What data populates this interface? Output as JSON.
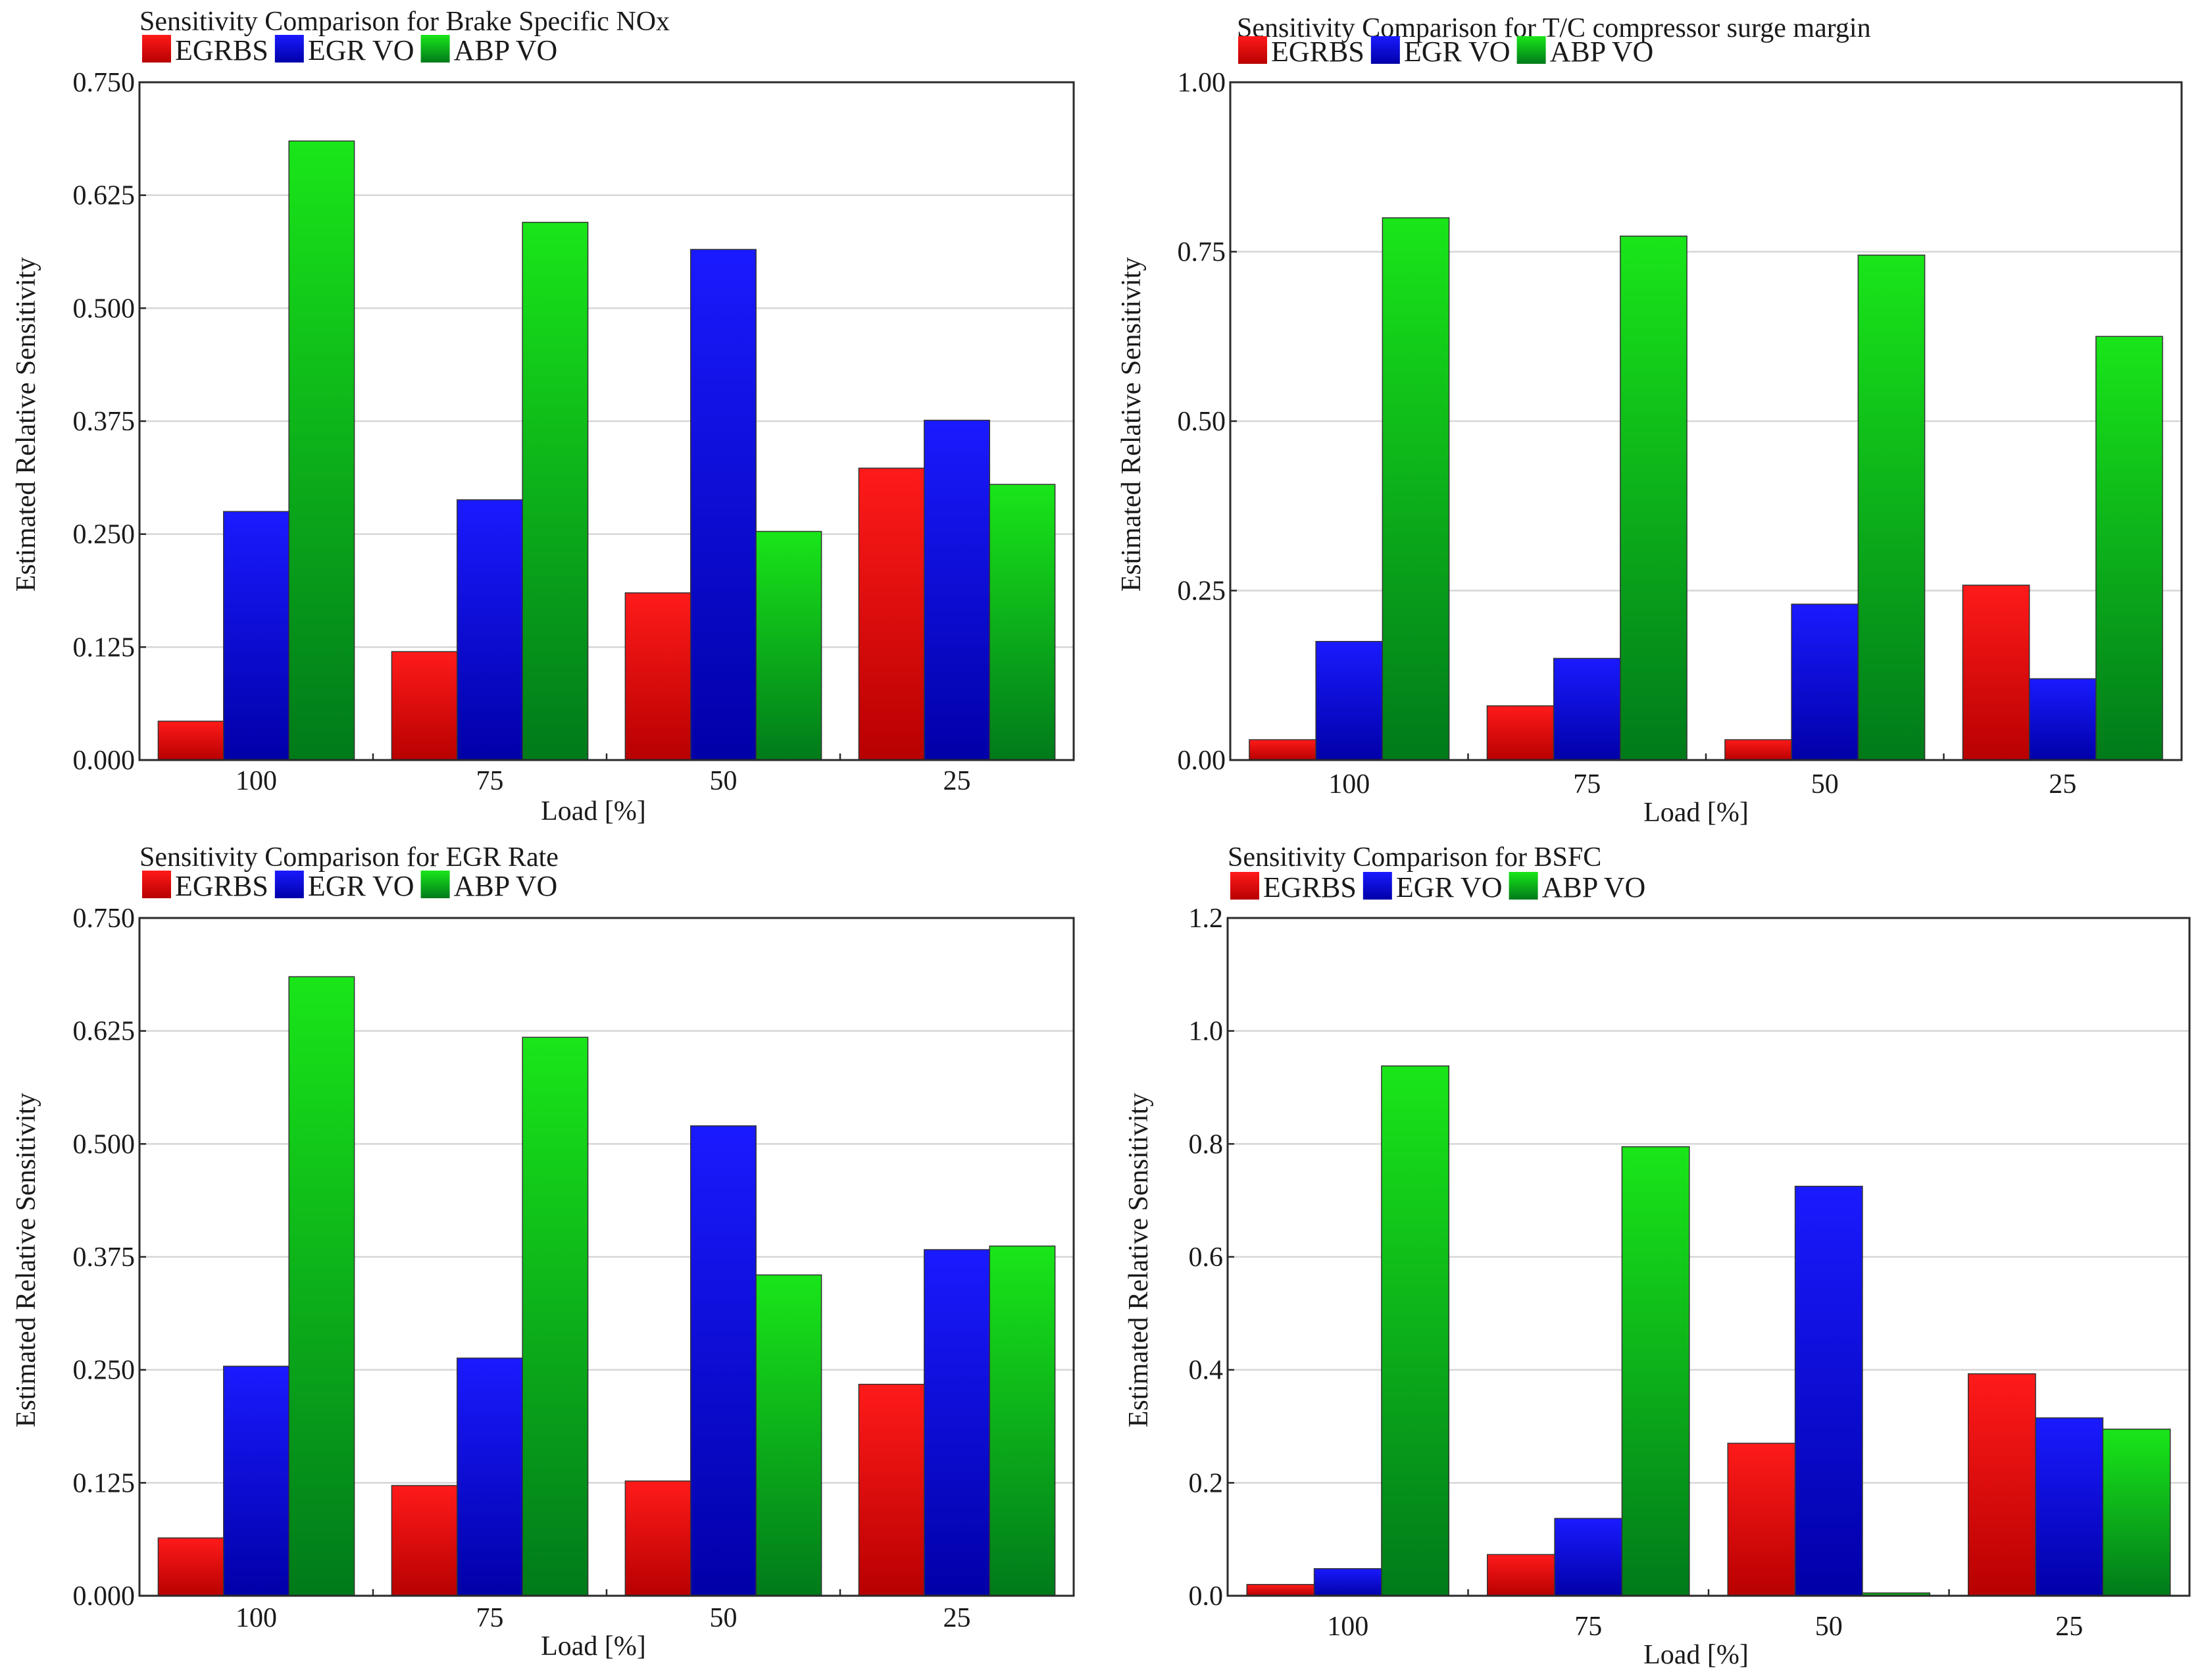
{
  "series_colors": {
    "EGRBS": [
      "#ff1a1a",
      "#b80000"
    ],
    "EGR VO": [
      "#1a1aff",
      "#0000a8"
    ],
    "ABP VO": [
      "#19e619",
      "#007a1a"
    ]
  },
  "chart_data": [
    {
      "type": "bar",
      "title": "Sensitivity Comparison for Brake Specific NOx",
      "legend": [
        "EGRBS",
        "EGR  VO",
        "ABP VO"
      ],
      "categories": [
        "100",
        "75",
        "50",
        "25"
      ],
      "xlabel": "Load [%]",
      "ylabel": "Estimated Relative Sensitivity",
      "ylim": [
        0,
        0.75
      ],
      "yticks": [
        "0.000",
        "0.125",
        "0.250",
        "0.375",
        "0.500",
        "0.625",
        "0.750"
      ],
      "series": [
        {
          "name": "EGRBS",
          "values": [
            0.043,
            0.12,
            0.185,
            0.323
          ]
        },
        {
          "name": "EGR VO",
          "values": [
            0.275,
            0.288,
            0.565,
            0.376
          ]
        },
        {
          "name": "ABP VO",
          "values": [
            0.685,
            0.595,
            0.253,
            0.305
          ]
        }
      ]
    },
    {
      "type": "bar",
      "title": "Sensitivity Comparison for T/C compressor surge margin",
      "legend": [
        "EGRBS",
        "EGR  VO",
        "ABP VO"
      ],
      "categories": [
        "100",
        "75",
        "50",
        "25"
      ],
      "xlabel": "Load [%]",
      "ylabel": "Estimated Relative Sensitivity",
      "ylim": [
        0,
        1.0
      ],
      "yticks": [
        "0.00",
        "0.25",
        "0.50",
        "0.75",
        "1.00"
      ],
      "series": [
        {
          "name": "EGRBS",
          "values": [
            0.03,
            0.08,
            0.03,
            0.258
          ]
        },
        {
          "name": "EGR VO",
          "values": [
            0.175,
            0.15,
            0.23,
            0.12
          ]
        },
        {
          "name": "ABP VO",
          "values": [
            0.8,
            0.773,
            0.745,
            0.625
          ]
        }
      ]
    },
    {
      "type": "bar",
      "title": "Sensitivity Comparison for EGR Rate",
      "legend": [
        "EGRBS",
        "EGR  VO",
        "ABP VO"
      ],
      "categories": [
        "100",
        "75",
        "50",
        "25"
      ],
      "xlabel": "Load [%]",
      "ylabel": "Estimated Relative Sensitivity",
      "ylim": [
        0,
        0.75
      ],
      "yticks": [
        "0.000",
        "0.125",
        "0.250",
        "0.375",
        "0.500",
        "0.625",
        "0.750"
      ],
      "series": [
        {
          "name": "EGRBS",
          "values": [
            0.064,
            0.122,
            0.127,
            0.234
          ]
        },
        {
          "name": "EGR VO",
          "values": [
            0.254,
            0.263,
            0.52,
            0.383
          ]
        },
        {
          "name": "ABP VO",
          "values": [
            0.685,
            0.618,
            0.355,
            0.387
          ]
        }
      ]
    },
    {
      "type": "bar",
      "title": "Sensitivity Comparison for BSFC",
      "legend": [
        "EGRBS",
        "EGR  VO",
        "ABP VO"
      ],
      "categories": [
        "100",
        "75",
        "50",
        "25"
      ],
      "xlabel": "Load [%]",
      "ylabel": "Estimated Relative Sensitivity",
      "ylim": [
        0,
        1.2
      ],
      "yticks": [
        "0.0",
        "0.2",
        "0.4",
        "0.6",
        "0.8",
        "1.0",
        "1.2"
      ],
      "series": [
        {
          "name": "EGRBS",
          "values": [
            0.02,
            0.073,
            0.27,
            0.393
          ]
        },
        {
          "name": "EGR VO",
          "values": [
            0.048,
            0.137,
            0.725,
            0.315
          ]
        },
        {
          "name": "ABP VO",
          "values": [
            0.938,
            0.795,
            0.005,
            0.295
          ]
        }
      ]
    }
  ]
}
